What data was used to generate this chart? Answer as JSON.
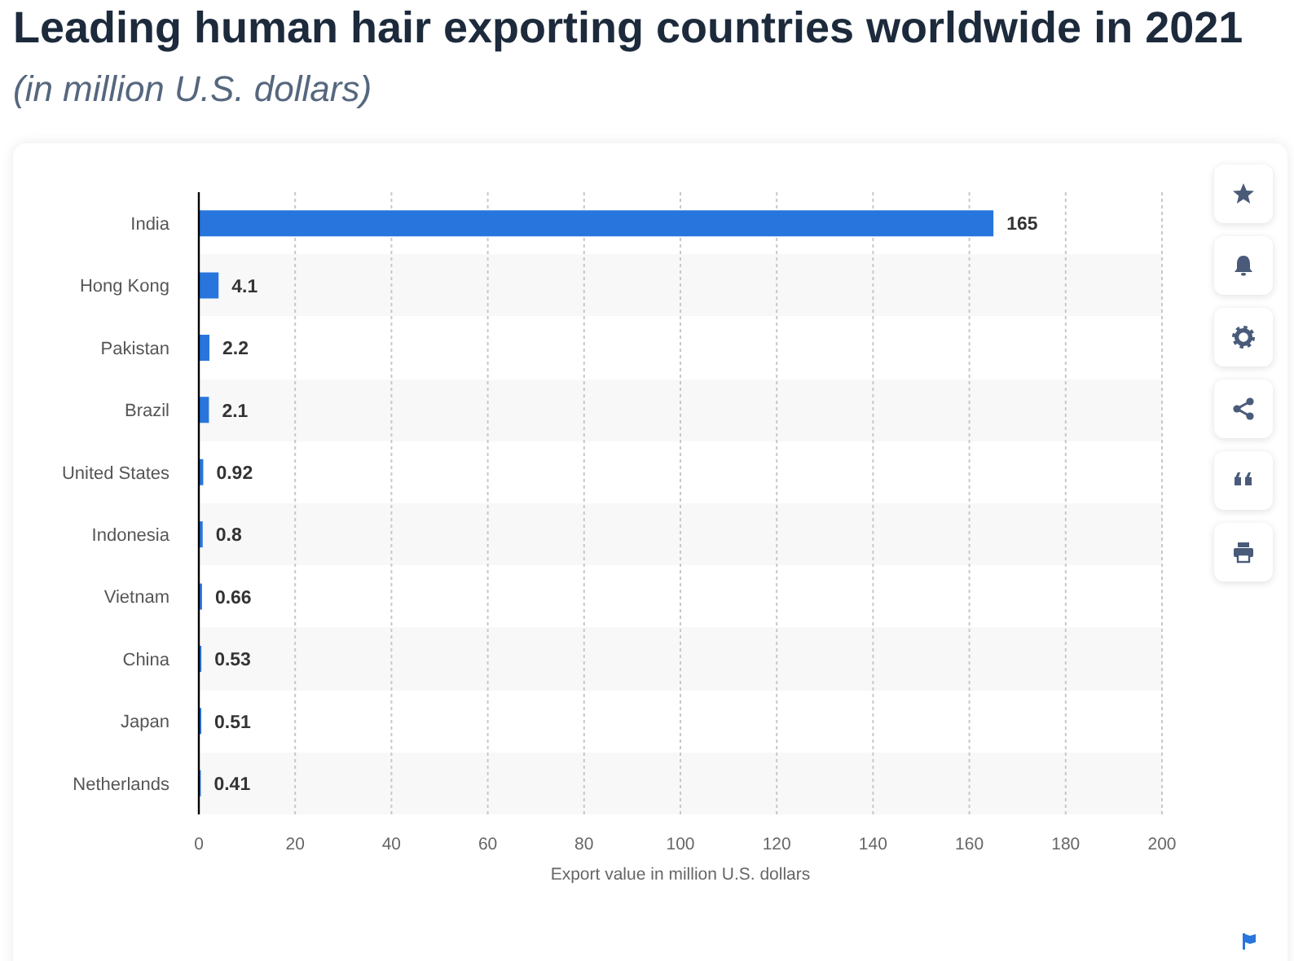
{
  "chart_data": {
    "type": "bar",
    "orientation": "horizontal",
    "title": "Leading human hair exporting countries worldwide in 2021",
    "subtitle": "(in million U.S. dollars)",
    "xlabel": "Export value in million U.S. dollars",
    "categories": [
      "India",
      "Hong Kong",
      "Pakistan",
      "Brazil",
      "United States",
      "Indonesia",
      "Vietnam",
      "China",
      "Japan",
      "Netherlands"
    ],
    "values": [
      165,
      4.1,
      2.2,
      2.1,
      0.92,
      0.8,
      0.66,
      0.53,
      0.51,
      0.41
    ],
    "color": "#2876dd",
    "xlim": [
      0,
      200
    ],
    "xticks": [
      0,
      20,
      40,
      60,
      80,
      100,
      120,
      140,
      160,
      180,
      200
    ],
    "grid": "x",
    "data_labels": true
  }
}
